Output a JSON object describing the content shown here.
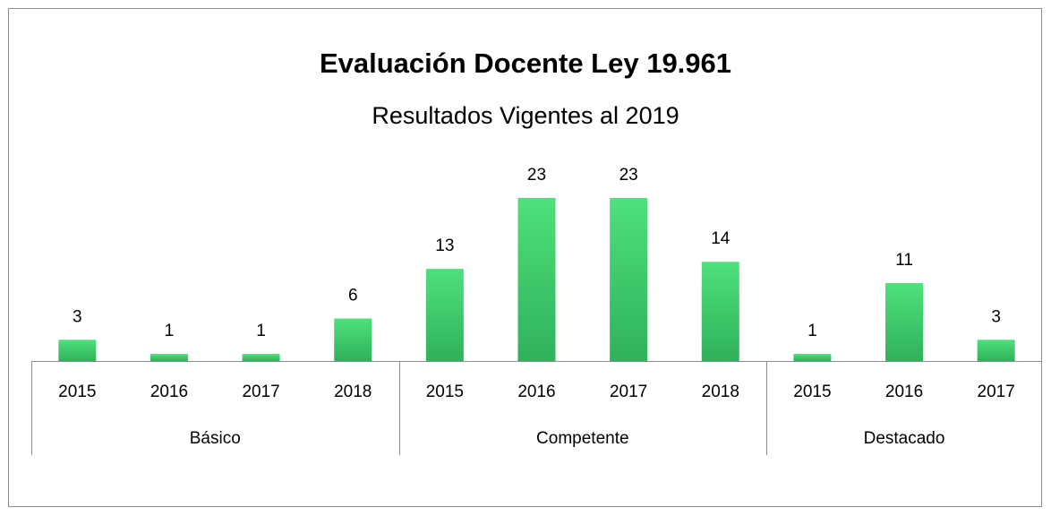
{
  "chart_data": {
    "type": "bar",
    "title": "Evaluación Docente Ley 19.961",
    "subtitle": "Resultados Vigentes al 2019",
    "color": "#44d46f",
    "groups": [
      {
        "name": "Básico",
        "categories": [
          "2015",
          "2016",
          "2017",
          "2018"
        ],
        "values": [
          3,
          1,
          1,
          6
        ]
      },
      {
        "name": "Competente",
        "categories": [
          "2015",
          "2016",
          "2017",
          "2018"
        ],
        "values": [
          13,
          23,
          23,
          14
        ]
      },
      {
        "name": "Destacado",
        "categories": [
          "2015",
          "2016",
          "2017"
        ],
        "values": [
          1,
          11,
          3
        ]
      }
    ]
  }
}
